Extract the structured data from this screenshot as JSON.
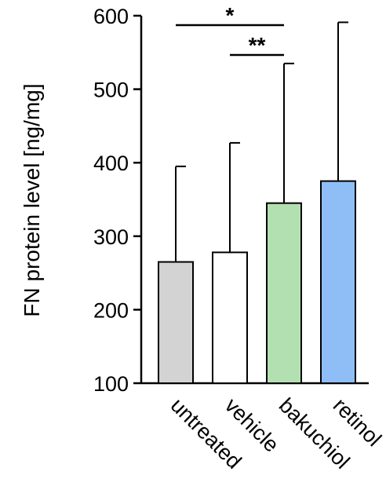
{
  "chart_data": {
    "type": "bar",
    "ylabel": "FN protein level [ng/mg]",
    "ylim": [
      100,
      600
    ],
    "yticks": [
      100,
      200,
      300,
      400,
      500,
      600
    ],
    "categories": [
      "untreated",
      "vehicle",
      "bakuchiol",
      "retinol"
    ],
    "values": [
      265,
      278,
      345,
      375
    ],
    "error_upper": [
      395,
      427,
      535,
      591
    ],
    "colors": [
      "#d3d3d3",
      "#ffffff",
      "#b2e0b0",
      "#8fbef7"
    ],
    "edge_color": "#000000",
    "grid": false,
    "significance": [
      {
        "from": "untreated",
        "to": "bakuchiol",
        "label": "*"
      },
      {
        "from": "vehicle",
        "to": "bakuchiol",
        "label": "**"
      }
    ]
  }
}
